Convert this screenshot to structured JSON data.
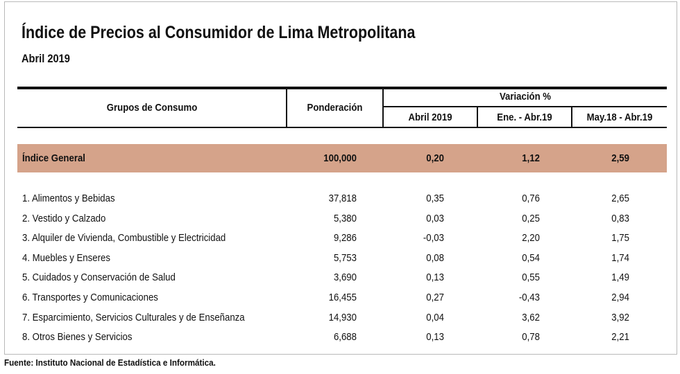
{
  "title": "Índice de Precios al Consumidor de Lima Metropolitana",
  "subtitle": "Abril 2019",
  "header": {
    "grupos": "Grupos de Consumo",
    "ponderacion": "Ponderación",
    "variacion": "Variación %",
    "col1": "Abril 2019",
    "col2": "Ene. - Abr.19",
    "col3": "May.18 - Abr.19"
  },
  "general": {
    "label": "Índice General",
    "ponderacion": "100,000",
    "v1": "0,20",
    "v2": "1,12",
    "v3": "2,59"
  },
  "rows": [
    {
      "label": "1. Alimentos y Bebidas",
      "ponderacion": "37,818",
      "v1": "0,35",
      "v2": "0,76",
      "v3": "2,65"
    },
    {
      "label": "2. Vestido y Calzado",
      "ponderacion": "5,380",
      "v1": "0,03",
      "v2": "0,25",
      "v3": "0,83"
    },
    {
      "label": "3. Alquiler de Vivienda, Combustible y Electricidad",
      "ponderacion": "9,286",
      "v1": "-0,03",
      "v2": "2,20",
      "v3": "1,75"
    },
    {
      "label": "4. Muebles y Enseres",
      "ponderacion": "5,753",
      "v1": "0,08",
      "v2": "0,54",
      "v3": "1,74"
    },
    {
      "label": "5. Cuidados y Conservación de Salud",
      "ponderacion": "3,690",
      "v1": "0,13",
      "v2": "0,55",
      "v3": "1,49"
    },
    {
      "label": "6. Transportes y Comunicaciones",
      "ponderacion": "16,455",
      "v1": "0,27",
      "v2": "-0,43",
      "v3": "2,94"
    },
    {
      "label": "7. Esparcimiento, Servicios Culturales y de Enseñanza",
      "ponderacion": "14,930",
      "v1": "0,04",
      "v2": "3,62",
      "v3": "3,92"
    },
    {
      "label": "8. Otros Bienes y Servicios",
      "ponderacion": "6,688",
      "v1": "0,13",
      "v2": "0,78",
      "v3": "2,21"
    }
  ],
  "source": "Fuente: Instituto Nacional de Estadística e Informática.",
  "colors": {
    "band": "#d5a38a",
    "rule": "#111111"
  }
}
